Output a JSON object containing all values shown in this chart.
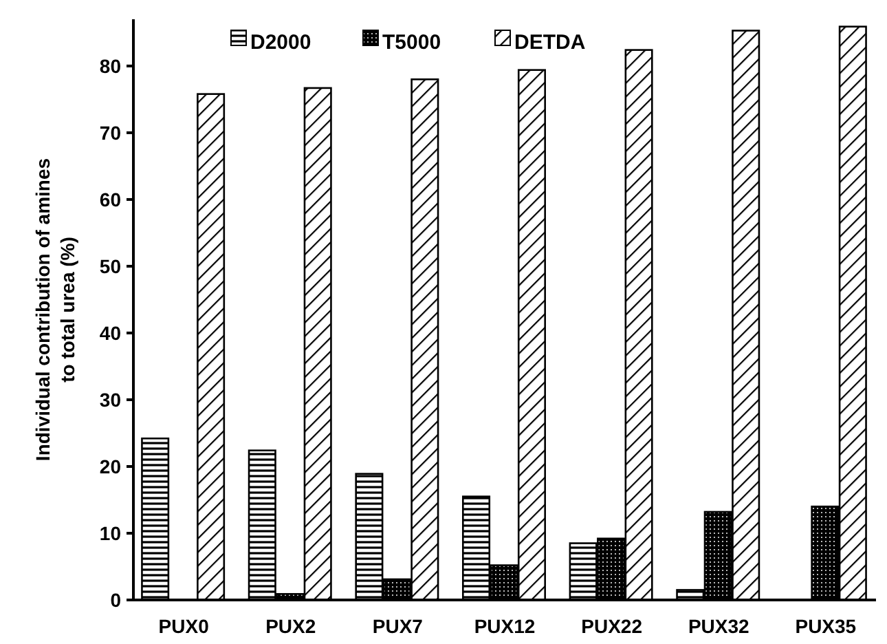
{
  "chart_data": {
    "type": "bar",
    "categories": [
      "PUX0",
      "PUX2",
      "PUX7",
      "PUX12",
      "PUX22",
      "PUX32",
      "PUX35"
    ],
    "series": [
      {
        "name": "D2000",
        "color": "#000000",
        "values": [
          24.2,
          22.4,
          18.9,
          15.5,
          8.5,
          1.5,
          0
        ]
      },
      {
        "name": "T5000",
        "color": "#000000",
        "values": [
          0,
          0.9,
          3.1,
          5.2,
          9.2,
          13.2,
          14.0
        ]
      },
      {
        "name": "DETDA",
        "color": "#000000",
        "values": [
          75.8,
          76.7,
          78.0,
          79.4,
          82.4,
          85.3,
          85.9
        ]
      }
    ],
    "ylabel": "Individual contribution of amines\nto total urea (%)",
    "ylim": [
      0,
      87
    ],
    "yticks": [
      0,
      10,
      20,
      30,
      40,
      50,
      60,
      70,
      80
    ],
    "grid": false,
    "legend": "top"
  }
}
